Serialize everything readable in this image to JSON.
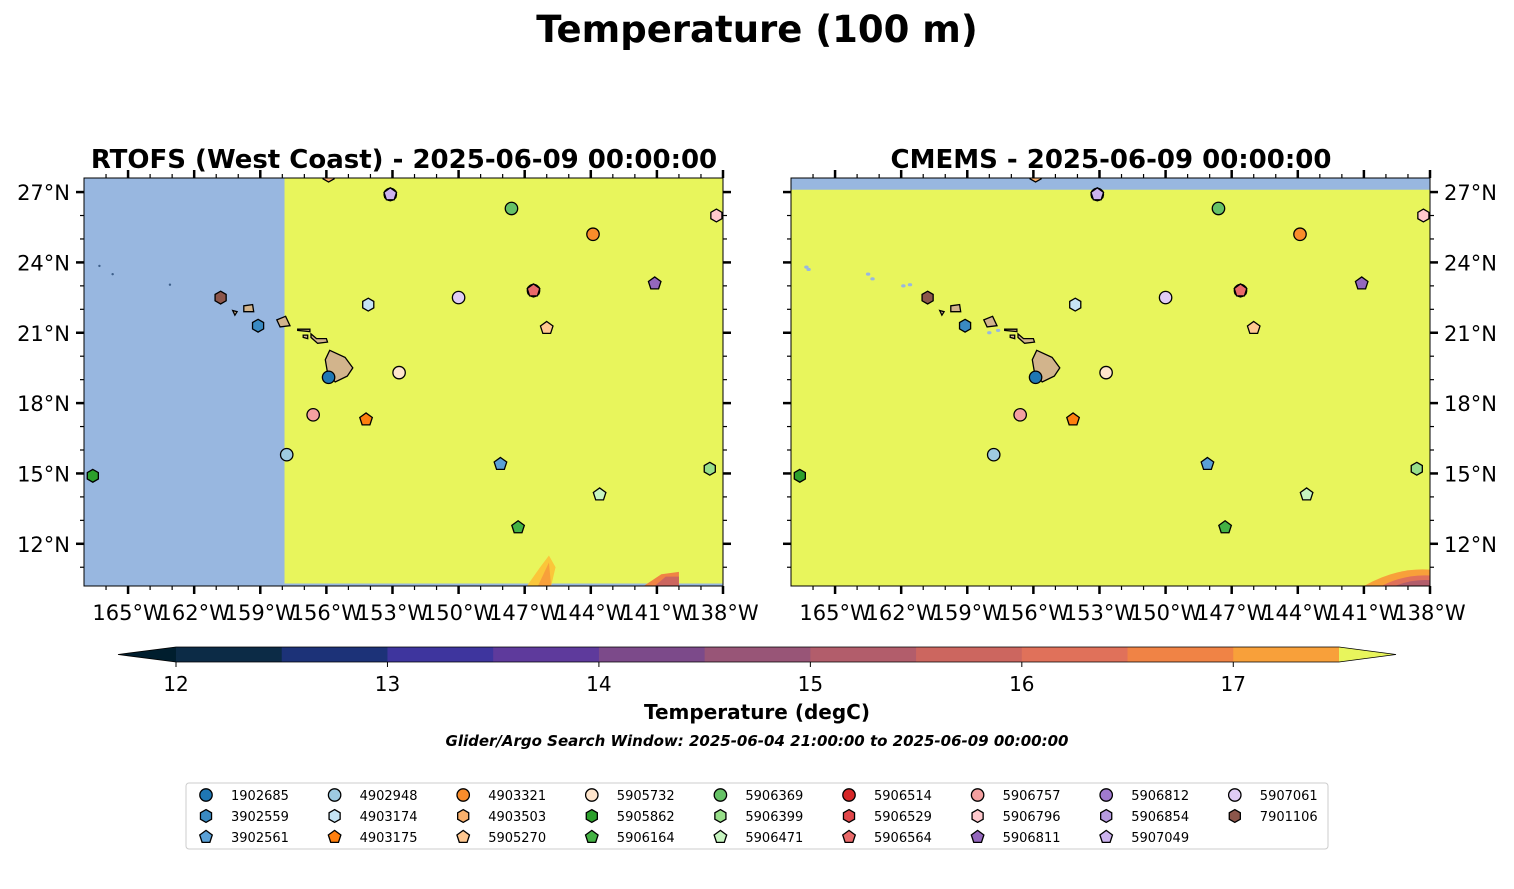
{
  "title": "Temperature (100 m)",
  "colorbar": {
    "label": "Temperature (degC)",
    "ticks": [
      "12",
      "13",
      "14",
      "15",
      "16",
      "17"
    ],
    "range": [
      11.75,
      17.75
    ],
    "bins": [
      11.75,
      12.0,
      12.5,
      13.0,
      13.5,
      14.0,
      14.5,
      15.0,
      15.5,
      16.0,
      16.5,
      17.0,
      17.5,
      17.75
    ],
    "colors": [
      "#001e2e",
      "#0c2b46",
      "#1c3278",
      "#3e359e",
      "#5e3a9c",
      "#7c4a8a",
      "#985577",
      "#b25d6b",
      "#cc665f",
      "#e0715a",
      "#f08345",
      "#f8a03a",
      "#fbc63a",
      "#e8f55c"
    ]
  },
  "subtitle": "Glider/Argo Search Window: 2025-06-04 21:00:00 to 2025-06-09 00:00:00",
  "axes": {
    "x_ticks": [
      "165°W",
      "162°W",
      "159°W",
      "156°W",
      "153°W",
      "150°W",
      "147°W",
      "144°W",
      "141°W",
      "138°W"
    ],
    "y_ticks": [
      "27°N",
      "24°N",
      "21°N",
      "18°N",
      "15°N",
      "12°N"
    ]
  },
  "colors": {
    "land": "#d2b48c",
    "nodata": "#98b7e0",
    "warm": "#e8f55c",
    "marker_edge": "#000000"
  },
  "chart_data": [
    {
      "type": "heatmap",
      "title": "RTOFS (West Coast) - 2025-06-09 00:00:00",
      "xlim": [
        -167,
        -138
      ],
      "ylim": [
        10.2,
        27.6
      ],
      "model_west_edge_lon": -157.9,
      "field": "nearly uniform > 17.5 degC; warm edge 16-17.5 near 11 N, 146 W and 11 N, 140 W"
    },
    {
      "type": "heatmap",
      "title": "CMEMS - 2025-06-09 00:00:00",
      "xlim": [
        -167,
        -138
      ],
      "ylim": [
        10.2,
        27.6
      ],
      "model_north_edge_lat": 27.1,
      "field": "nearly uniform > 17.5 degC; warmer edge near 11 N, 140 W"
    }
  ],
  "floats": [
    {
      "id": "1902685",
      "marker": "circle",
      "color": "#1f77b4",
      "lon": -155.9,
      "lat": 19.1
    },
    {
      "id": "3902559",
      "marker": "hexagon",
      "color": "#3a8ac2",
      "lon": -159.1,
      "lat": 21.3
    },
    {
      "id": "3902561",
      "marker": "pentagon",
      "color": "#5aa0d6",
      "lon": -148.1,
      "lat": 15.4
    },
    {
      "id": "4902948",
      "marker": "circle",
      "color": "#9ecae1",
      "lon": -157.8,
      "lat": 15.8
    },
    {
      "id": "4903174",
      "marker": "hexagon",
      "color": "#c6e4f4",
      "lon": -154.1,
      "lat": 22.2
    },
    {
      "id": "4903175",
      "marker": "pentagon",
      "color": "#ff7f0e",
      "lon": -154.2,
      "lat": 17.3
    },
    {
      "id": "4903321",
      "marker": "circle",
      "color": "#f98c2b",
      "lon": -143.9,
      "lat": 25.2
    },
    {
      "id": "4903503",
      "marker": "hexagon",
      "color": "#f9b06c",
      "lon": -155.9,
      "lat": 27.7
    },
    {
      "id": "5905270",
      "marker": "pentagon",
      "color": "#ffc891",
      "lon": -146.0,
      "lat": 21.2
    },
    {
      "id": "5905732",
      "marker": "circle",
      "color": "#ffe5cc",
      "lon": -152.7,
      "lat": 19.3
    },
    {
      "id": "5905862",
      "marker": "hexagon",
      "color": "#2ca02c",
      "lon": -166.6,
      "lat": 14.9
    },
    {
      "id": "5906164",
      "marker": "pentagon",
      "color": "#44b244",
      "lon": -147.3,
      "lat": 12.7
    },
    {
      "id": "5906369",
      "marker": "circle",
      "color": "#66c266",
      "lon": -147.6,
      "lat": 26.3
    },
    {
      "id": "5906399",
      "marker": "hexagon",
      "color": "#98df8a",
      "lon": -138.6,
      "lat": 15.2
    },
    {
      "id": "5906471",
      "marker": "pentagon",
      "color": "#c7f5c0",
      "lon": -143.6,
      "lat": 14.1
    },
    {
      "id": "5906514",
      "marker": "circle",
      "color": "#d62728",
      "lon": -146.6,
      "lat": 22.8
    },
    {
      "id": "5906529",
      "marker": "hexagon",
      "color": "#e0474a",
      "lon": -146.6,
      "lat": 22.8
    },
    {
      "id": "5906564",
      "marker": "pentagon",
      "color": "#ea6a6a",
      "lon": -146.6,
      "lat": 22.8
    },
    {
      "id": "5906757",
      "marker": "circle",
      "color": "#f4a0a0",
      "lon": -156.6,
      "lat": 17.5
    },
    {
      "id": "5906796",
      "marker": "hexagon",
      "color": "#ffc9cd",
      "lon": -138.3,
      "lat": 26.0
    },
    {
      "id": "5906811",
      "marker": "pentagon",
      "color": "#9467bd",
      "lon": -141.1,
      "lat": 23.1
    },
    {
      "id": "5906812",
      "marker": "circle",
      "color": "#a07ad0",
      "lon": -153.1,
      "lat": 26.9
    },
    {
      "id": "5906854",
      "marker": "hexagon",
      "color": "#b69be0",
      "lon": -153.1,
      "lat": 26.9
    },
    {
      "id": "5907049",
      "marker": "pentagon",
      "color": "#ccb3ee",
      "lon": -153.1,
      "lat": 26.9
    },
    {
      "id": "5907061",
      "marker": "circle",
      "color": "#e0ccf5",
      "lon": -150.0,
      "lat": 22.5
    },
    {
      "id": "7901106",
      "marker": "hexagon",
      "color": "#8c564b",
      "lon": -160.8,
      "lat": 22.5
    }
  ]
}
